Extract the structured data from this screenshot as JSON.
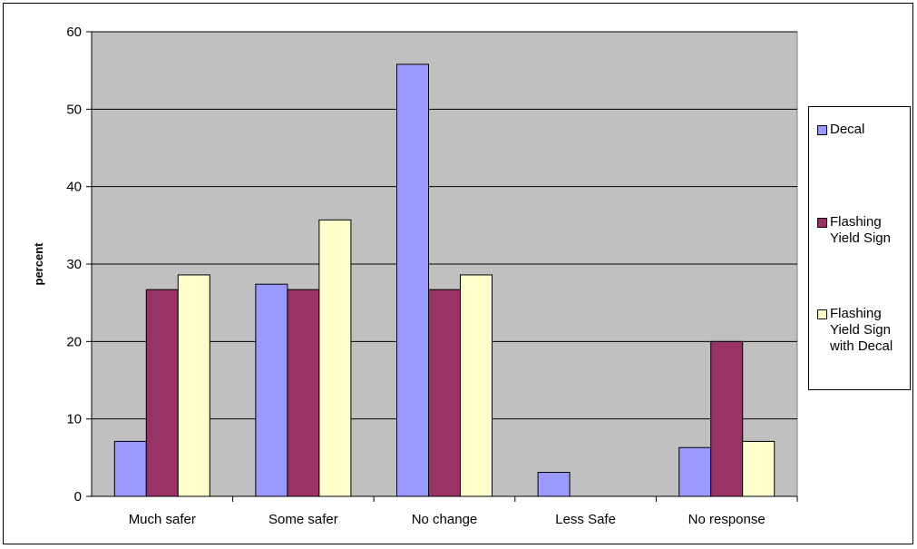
{
  "chart_data": {
    "type": "bar",
    "title": "",
    "xlabel": "",
    "ylabel": "percent",
    "categories": [
      "Much safer",
      "Some safer",
      "No change",
      "Less Safe",
      "No response"
    ],
    "series": [
      {
        "name": "Decal",
        "color": "#9999ff",
        "values": [
          7.1,
          27.4,
          55.8,
          3.1,
          6.3
        ]
      },
      {
        "name": "Flashing Yield Sign",
        "color": "#993366",
        "values": [
          26.7,
          26.7,
          26.7,
          0,
          20.0
        ]
      },
      {
        "name": "Flashing Yield Sign with Decal",
        "color": "#ffffcc",
        "values": [
          28.6,
          35.7,
          28.6,
          0,
          7.1
        ]
      }
    ],
    "ylim": [
      0,
      60
    ],
    "yticks": [
      "0",
      "10",
      "20",
      "30",
      "40",
      "50",
      "60"
    ],
    "grid": true,
    "plot_background": "#c0c0c0",
    "legend_position": "right"
  }
}
